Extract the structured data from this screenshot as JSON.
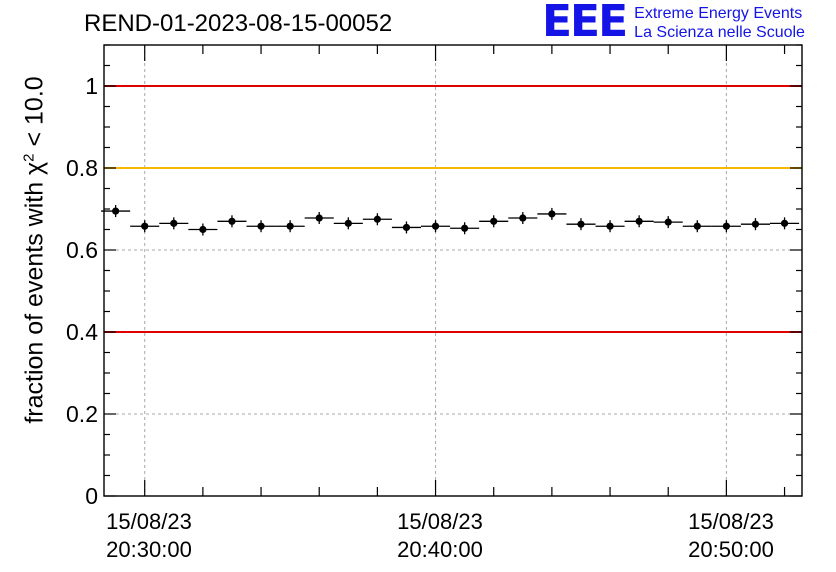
{
  "header": {
    "title": "REND-01-2023-08-15-00052"
  },
  "logo": {
    "mark": "EEE",
    "line1": "Extreme Energy Events",
    "line2": "La Scienza nelle Scuole"
  },
  "chart_data": {
    "type": "scatter",
    "title": "REND-01-2023-08-15-00052",
    "ylabel_prefix": "fraction of events with χ",
    "ylabel_sup": "2",
    "ylabel_suffix": " < 10.0",
    "ylim": [
      0,
      1.1
    ],
    "yticks": [
      0,
      0.2,
      0.4,
      0.6,
      0.8,
      1
    ],
    "ytick_labels": [
      "0",
      "0.2",
      "0.4",
      "0.6",
      "0.8",
      "1"
    ],
    "xlim": [
      "2023-08-15 20:28:36",
      "2023-08-15 20:52:36"
    ],
    "xticks": [
      {
        "time": "2023-08-15 20:30:00",
        "date": "15/08/23",
        "clock": "20:30:00"
      },
      {
        "time": "2023-08-15 20:40:00",
        "date": "15/08/23",
        "clock": "20:40:00"
      },
      {
        "time": "2023-08-15 20:50:00",
        "date": "15/08/23",
        "clock": "20:50:00"
      }
    ],
    "grid": true,
    "reference_lines": [
      {
        "y": 1.0,
        "color": "#e00000"
      },
      {
        "y": 0.8,
        "color": "#f5b800"
      },
      {
        "y": 0.4,
        "color": "#e00000"
      }
    ],
    "bin_minutes": 1,
    "series": [
      {
        "marker_color": "#000000",
        "x": [
          "20:29:00",
          "20:30:00",
          "20:31:00",
          "20:32:00",
          "20:33:00",
          "20:34:00",
          "20:35:00",
          "20:36:00",
          "20:37:00",
          "20:38:00",
          "20:39:00",
          "20:40:00",
          "20:41:00",
          "20:42:00",
          "20:43:00",
          "20:44:00",
          "20:45:00",
          "20:46:00",
          "20:47:00",
          "20:48:00",
          "20:49:00",
          "20:50:00",
          "20:51:00",
          "20:52:00"
        ],
        "y": [
          0.695,
          0.658,
          0.665,
          0.65,
          0.67,
          0.658,
          0.658,
          0.678,
          0.665,
          0.675,
          0.655,
          0.658,
          0.653,
          0.67,
          0.678,
          0.688,
          0.663,
          0.658,
          0.67,
          0.668,
          0.658,
          0.658,
          0.663,
          0.665
        ]
      }
    ]
  }
}
